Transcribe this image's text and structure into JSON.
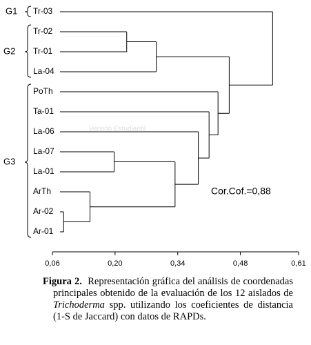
{
  "chart_data": {
    "type": "dendrogram",
    "xlim": [
      0.06,
      0.61
    ],
    "xticks": [
      {
        "value": 0.06,
        "label": "0,06"
      },
      {
        "value": 0.2,
        "label": "0,20"
      },
      {
        "value": 0.34,
        "label": "0,34"
      },
      {
        "value": 0.48,
        "label": "0,48"
      },
      {
        "value": 0.61,
        "label": "0,61"
      }
    ],
    "groups": [
      "G1",
      "G2",
      "G3"
    ],
    "annotation": "Cor.Cof.=0,88",
    "watermark": "Versión Estudiantil",
    "tree": {
      "height": 0.552,
      "children": [
        {
          "label": "Tr-03"
        },
        {
          "height": 0.455,
          "children": [
            {
              "height": 0.292,
              "children": [
                {
                  "height": 0.226,
                  "children": [
                    {
                      "label": "Tr-02"
                    },
                    {
                      "label": "Tr-01"
                    }
                  ]
                },
                {
                  "label": "La-04"
                }
              ]
            },
            {
              "height": 0.43,
              "children": [
                {
                  "label": "PoTh"
                },
                {
                  "height": 0.41,
                  "children": [
                    {
                      "label": "Ta-01"
                    },
                    {
                      "height": 0.386,
                      "children": [
                        {
                          "label": "La-06"
                        },
                        {
                          "height": 0.334,
                          "children": [
                            {
                              "height": 0.198,
                              "children": [
                                {
                                  "label": "La-07"
                                },
                                {
                                  "label": "La-01"
                                }
                              ]
                            },
                            {
                              "height": 0.144,
                              "children": [
                                {
                                  "label": "ArTh"
                                },
                                {
                                  "height": 0.085,
                                  "children": [
                                    {
                                      "label": "Ar-02"
                                    },
                                    {
                                      "label": "Ar-01"
                                    }
                                  ]
                                }
                              ]
                            }
                          ]
                        }
                      ]
                    }
                  ]
                }
              ]
            }
          ]
        }
      ]
    }
  },
  "caption": {
    "label": "Figura 2.",
    "text_before": "Representación gráfica del análisis de coordenadas principales obtenido de la evaluación de los 12 aislados de ",
    "italic": "Trichoderma",
    "text_after": " spp. utilizando los coeficientes de distancia (1-S de Jaccard) con datos de RAPDs."
  }
}
